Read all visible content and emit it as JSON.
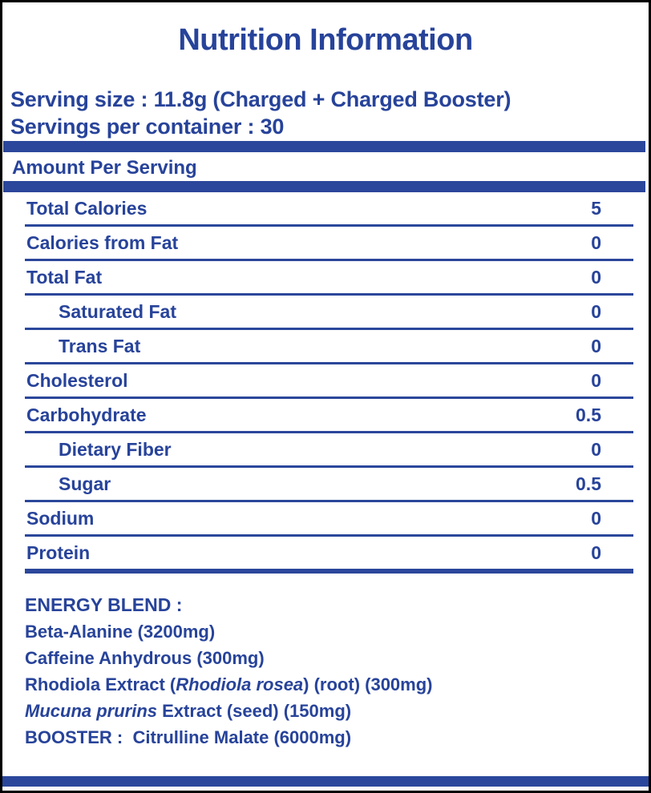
{
  "colors": {
    "accent": "#2b479b",
    "text": "#27439a",
    "frame_border": "#000000",
    "background": "#ffffff"
  },
  "title": "Nutrition Information",
  "serving": {
    "size_line": "Serving size : 11.8g (Charged + Charged Booster)",
    "servings_line": "Servings per container : 30"
  },
  "amount_per_serving_label": "Amount Per Serving",
  "nutrition_table": {
    "rows": [
      {
        "label": "Total Calories",
        "value": "5",
        "indent": false
      },
      {
        "label": "Calories from Fat",
        "value": "0",
        "indent": false
      },
      {
        "label": "Total Fat",
        "value": "0",
        "indent": false
      },
      {
        "label": "Saturated Fat",
        "value": "0",
        "indent": true
      },
      {
        "label": "Trans Fat",
        "value": "0",
        "indent": true
      },
      {
        "label": "Cholesterol",
        "value": "0",
        "indent": false
      },
      {
        "label": "Carbohydrate",
        "value": "0.5",
        "indent": false
      },
      {
        "label": "Dietary Fiber",
        "value": "0",
        "indent": true
      },
      {
        "label": "Sugar",
        "value": "0.5",
        "indent": true
      },
      {
        "label": "Sodium",
        "value": "0",
        "indent": false
      },
      {
        "label": "Protein",
        "value": "0",
        "indent": false
      }
    ]
  },
  "energy_blend": {
    "heading": "ENERGY BLEND :",
    "items": [
      {
        "segments": [
          {
            "text": "Beta-Alanine (3200mg)",
            "italic": false
          }
        ]
      },
      {
        "segments": [
          {
            "text": "Caffeine Anhydrous (300mg)",
            "italic": false
          }
        ]
      },
      {
        "segments": [
          {
            "text": "Rhodiola Extract (",
            "italic": false
          },
          {
            "text": "Rhodiola rosea",
            "italic": true
          },
          {
            "text": ") (root) (300mg)",
            "italic": false
          }
        ]
      },
      {
        "segments": [
          {
            "text": "Mucuna prurins",
            "italic": true
          },
          {
            "text": " Extract (seed) (150mg)",
            "italic": false
          }
        ]
      },
      {
        "segments": [
          {
            "text": "BOOSTER :  Citrulline Malate (6000mg)",
            "italic": false
          }
        ]
      }
    ]
  }
}
